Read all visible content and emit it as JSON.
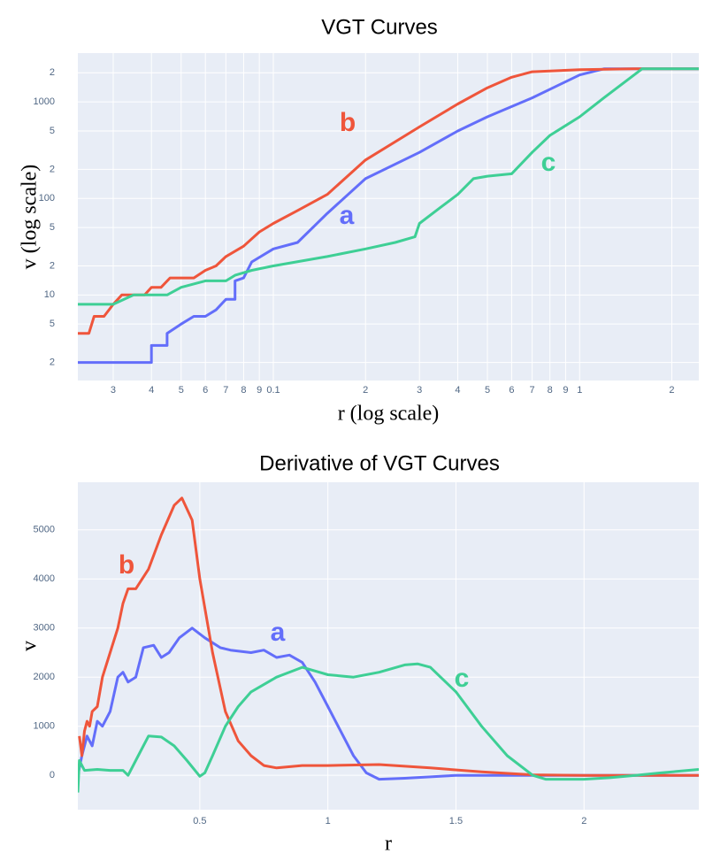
{
  "chart_data": [
    {
      "type": "line",
      "title": "VGT Curves",
      "x_label": "r (log scale)",
      "y_label": "v (log scale)",
      "xscale": "log",
      "yscale": "log",
      "grid": true,
      "xlim": [
        0.023,
        2.45
      ],
      "ylim": [
        1.3,
        3200
      ],
      "xticks": [
        {
          "value": 0.03,
          "label": "3"
        },
        {
          "value": 0.04,
          "label": "4"
        },
        {
          "value": 0.05,
          "label": "5"
        },
        {
          "value": 0.06,
          "label": "6"
        },
        {
          "value": 0.07,
          "label": "7"
        },
        {
          "value": 0.08,
          "label": "8"
        },
        {
          "value": 0.09,
          "label": "9"
        },
        0.1,
        {
          "value": 0.2,
          "label": "2"
        },
        {
          "value": 0.3,
          "label": "3"
        },
        {
          "value": 0.4,
          "label": "4"
        },
        {
          "value": 0.5,
          "label": "5"
        },
        {
          "value": 0.6,
          "label": "6"
        },
        {
          "value": 0.7,
          "label": "7"
        },
        {
          "value": 0.8,
          "label": "8"
        },
        {
          "value": 0.9,
          "label": "9"
        },
        1,
        {
          "value": 2,
          "label": "2"
        }
      ],
      "yticks": [
        2,
        5,
        10,
        {
          "value": 20,
          "label": "2"
        },
        {
          "value": 50,
          "label": "5"
        },
        100,
        {
          "value": 200,
          "label": "2"
        },
        {
          "value": 500,
          "label": "5"
        },
        1000,
        {
          "value": 2000,
          "label": "2"
        }
      ],
      "series": [
        {
          "name": "a",
          "color": "#636efa",
          "x": [
            0.023,
            0.04,
            0.04,
            0.045,
            0.045,
            0.05,
            0.055,
            0.06,
            0.065,
            0.07,
            0.075,
            0.075,
            0.08,
            0.085,
            0.1,
            0.12,
            0.15,
            0.2,
            0.3,
            0.4,
            0.5,
            0.7,
            1,
            1.2,
            2.45
          ],
          "values": [
            2,
            2,
            3,
            3,
            4,
            5,
            6,
            6,
            7,
            9,
            9,
            14,
            15,
            22,
            30,
            35,
            70,
            160,
            300,
            500,
            700,
            1100,
            1900,
            2200,
            2200
          ]
        },
        {
          "name": "b",
          "color": "#ef553b",
          "x": [
            0.023,
            0.025,
            0.026,
            0.028,
            0.03,
            0.032,
            0.035,
            0.038,
            0.04,
            0.043,
            0.046,
            0.05,
            0.055,
            0.06,
            0.065,
            0.07,
            0.08,
            0.09,
            0.1,
            0.12,
            0.15,
            0.2,
            0.3,
            0.4,
            0.5,
            0.6,
            0.7,
            1,
            1.5,
            2.45
          ],
          "values": [
            4,
            4,
            6,
            6,
            8,
            10,
            10,
            10,
            12,
            12,
            15,
            15,
            15,
            18,
            20,
            25,
            32,
            45,
            55,
            75,
            110,
            250,
            550,
            950,
            1400,
            1800,
            2050,
            2150,
            2200,
            2200
          ]
        },
        {
          "name": "c",
          "color": "#3ecf95",
          "x": [
            0.023,
            0.03,
            0.035,
            0.045,
            0.05,
            0.06,
            0.07,
            0.075,
            0.085,
            0.1,
            0.15,
            0.2,
            0.25,
            0.29,
            0.3,
            0.35,
            0.4,
            0.45,
            0.5,
            0.6,
            0.7,
            0.8,
            1,
            1.2,
            1.6,
            2.45
          ],
          "values": [
            8,
            8,
            10,
            10,
            12,
            14,
            14,
            16,
            18,
            20,
            25,
            30,
            35,
            40,
            55,
            80,
            110,
            160,
            170,
            180,
            300,
            450,
            700,
            1100,
            2200,
            2200
          ]
        }
      ]
    },
    {
      "type": "line",
      "title": "Derivative of VGT Curves",
      "x_label": "r",
      "y_label": "v",
      "grid": true,
      "xlim": [
        0.024,
        2.448
      ],
      "ylim": [
        -700,
        5970
      ],
      "xticks": [
        0.5,
        1,
        1.5,
        2
      ],
      "yticks": [
        0,
        1000,
        2000,
        3000,
        4000,
        5000
      ],
      "series": [
        {
          "name": "a",
          "color": "#636efa",
          "x": [
            0.024,
            0.04,
            0.06,
            0.08,
            0.1,
            0.12,
            0.15,
            0.18,
            0.2,
            0.22,
            0.25,
            0.28,
            0.32,
            0.35,
            0.38,
            0.42,
            0.47,
            0.52,
            0.58,
            0.62,
            0.7,
            0.75,
            0.8,
            0.85,
            0.9,
            0.95,
            1.0,
            1.05,
            1.1,
            1.15,
            1.2,
            1.3,
            1.5,
            2.0,
            2.448
          ],
          "values": [
            0,
            400,
            800,
            600,
            1100,
            1000,
            1300,
            2000,
            2100,
            1900,
            2000,
            2600,
            2650,
            2400,
            2500,
            2800,
            3000,
            2800,
            2600,
            2550,
            2500,
            2550,
            2400,
            2450,
            2300,
            1900,
            1400,
            900,
            400,
            50,
            -80,
            -60,
            0,
            0,
            0
          ]
        },
        {
          "name": "b",
          "color": "#ef553b",
          "x": [
            0.03,
            0.04,
            0.05,
            0.06,
            0.07,
            0.08,
            0.1,
            0.12,
            0.15,
            0.18,
            0.2,
            0.22,
            0.25,
            0.3,
            0.35,
            0.4,
            0.43,
            0.47,
            0.5,
            0.55,
            0.6,
            0.65,
            0.7,
            0.75,
            0.8,
            0.9,
            1.0,
            1.2,
            1.4,
            1.6,
            1.8,
            2.0,
            2.448
          ],
          "values": [
            800,
            400,
            900,
            1100,
            1000,
            1300,
            1400,
            2000,
            2500,
            3000,
            3500,
            3800,
            3800,
            4200,
            4900,
            5500,
            5650,
            5200,
            4000,
            2500,
            1300,
            700,
            400,
            200,
            150,
            200,
            200,
            220,
            150,
            70,
            10,
            0,
            0
          ]
        },
        {
          "name": "c",
          "color": "#3ecf95",
          "x": [
            0.024,
            0.03,
            0.05,
            0.1,
            0.15,
            0.2,
            0.22,
            0.26,
            0.3,
            0.35,
            0.4,
            0.45,
            0.5,
            0.52,
            0.55,
            0.6,
            0.65,
            0.7,
            0.8,
            0.9,
            1.0,
            1.1,
            1.2,
            1.3,
            1.35,
            1.4,
            1.5,
            1.6,
            1.7,
            1.8,
            1.85,
            2.0,
            2.1,
            2.2,
            2.3,
            2.448
          ],
          "values": [
            -350,
            300,
            100,
            120,
            100,
            100,
            0,
            400,
            800,
            780,
            600,
            300,
            -20,
            50,
            400,
            1000,
            1400,
            1700,
            2000,
            2200,
            2050,
            2000,
            2100,
            2250,
            2270,
            2200,
            1700,
            1000,
            400,
            0,
            -80,
            -80,
            -50,
            0,
            50,
            120
          ]
        }
      ]
    }
  ]
}
